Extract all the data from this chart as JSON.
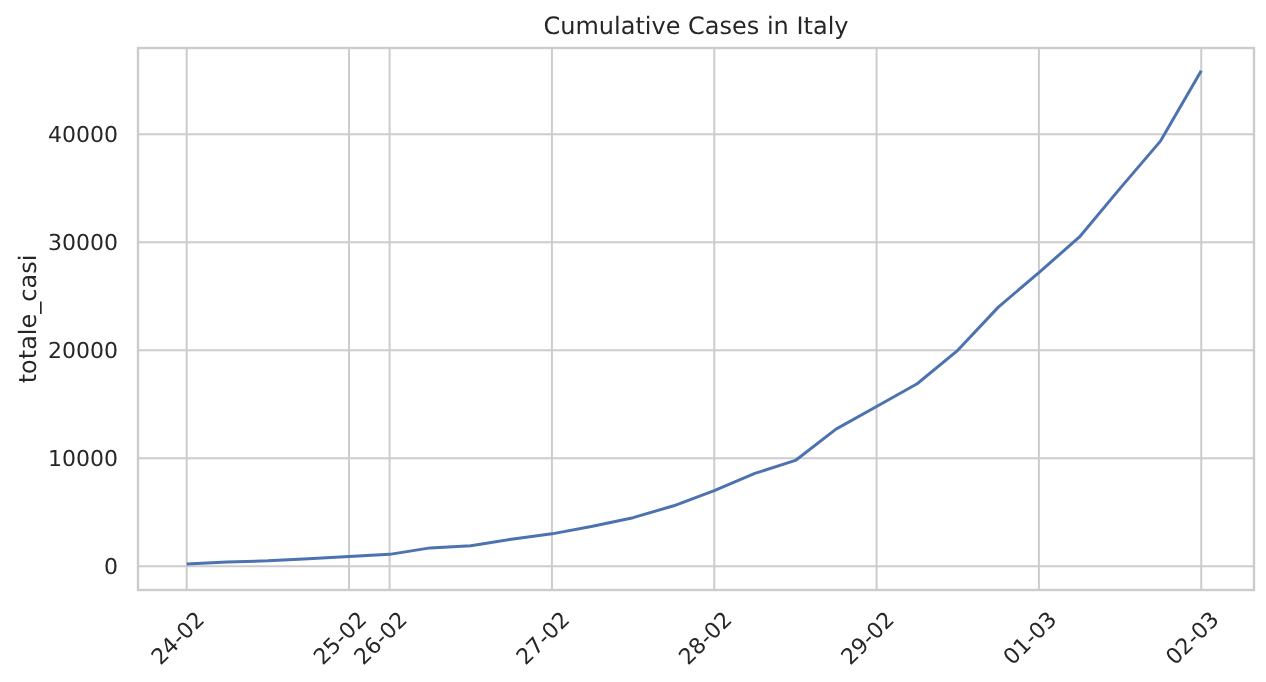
{
  "chart_data": {
    "type": "line",
    "title": "Cumulative Cases in Italy",
    "ylabel": "totale_casi",
    "categories": [
      "24-02",
      null,
      null,
      null,
      "25-02",
      "26-02",
      null,
      null,
      null,
      "27-02",
      null,
      null,
      null,
      "28-02",
      null,
      null,
      null,
      "29-02",
      null,
      null,
      null,
      "01-03",
      null,
      null,
      null,
      "02-03"
    ],
    "series": [
      {
        "color": "#4c72b0",
        "values": [
          200,
          400,
          500,
          700,
          900,
          1100,
          1700,
          1900,
          2500,
          3000,
          3700,
          4500,
          5600,
          7000,
          8600,
          9800,
          12700,
          14800,
          16900,
          20000,
          24000,
          27200,
          30500,
          35000,
          39400,
          45900
        ]
      }
    ],
    "ylim": [
      -2200,
      48000
    ],
    "yticks": [
      0,
      10000,
      20000,
      30000,
      40000
    ],
    "grid": true,
    "marker": "none",
    "line_style": "solid"
  }
}
